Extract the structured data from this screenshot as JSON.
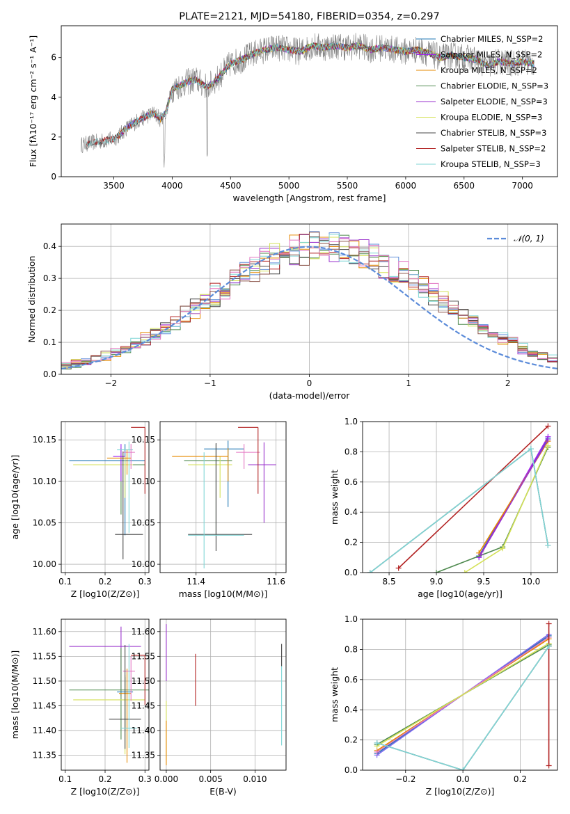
{
  "chart_data": [
    {
      "id": "spectrum",
      "type": "line",
      "title": "PLATE=2121, MJD=54180, FIBERID=0354, z=0.297",
      "xlabel": "wavelength [Angstrom, rest frame]",
      "ylabel": "Flux [fλ10⁻¹⁷ erg cm⁻² s⁻¹ A⁻¹]",
      "xlim": [
        3050,
        7300
      ],
      "ylim": [
        0,
        7.6
      ],
      "xticks": [
        3500,
        4000,
        4500,
        5000,
        5500,
        6000,
        6500,
        7000
      ],
      "yticks": [
        0,
        2,
        4,
        6
      ],
      "legend_position": "top-right",
      "data_color": "#808080",
      "continuum": {
        "x": [
          3220,
          3300,
          3400,
          3500,
          3550,
          3600,
          3700,
          3800,
          3850,
          3900,
          3950,
          4000,
          4100,
          4200,
          4300,
          4400,
          4500,
          4600,
          4700,
          4800,
          4900,
          5000,
          5100,
          5200,
          5300,
          5400,
          5500,
          5600,
          5700,
          5800,
          5900,
          6000,
          6100,
          6200,
          6300,
          6400,
          6500,
          6600,
          6700,
          6800,
          6900,
          7000,
          7100
        ],
        "y": [
          1.6,
          1.7,
          1.8,
          1.9,
          2.1,
          2.4,
          2.8,
          3.1,
          3.2,
          2.9,
          3.3,
          4.4,
          4.7,
          4.9,
          4.5,
          5.0,
          5.7,
          5.9,
          6.2,
          6.4,
          6.5,
          6.4,
          6.3,
          6.6,
          6.5,
          6.6,
          6.5,
          6.6,
          6.4,
          6.5,
          6.4,
          6.3,
          6.4,
          6.2,
          6.0,
          6.1,
          6.0,
          5.9,
          5.6,
          5.8,
          5.7,
          5.8,
          5.7
        ]
      },
      "series": [
        {
          "name": "Chabrier MILES, N_SSP=2",
          "color": "#1f77b4"
        },
        {
          "name": "Salpeter MILES, N_SSP=2",
          "color": "#a020f0"
        },
        {
          "name": "Kroupa MILES, N_SSP=2",
          "color": "#e68a00"
        },
        {
          "name": "Chabrier ELODIE, N_SSP=3",
          "color": "#4f8a4f"
        },
        {
          "name": "Salpeter ELODIE, N_SSP=3",
          "color": "#9932cc"
        },
        {
          "name": "Kroupa ELODIE, N_SSP=3",
          "color": "#d4e157"
        },
        {
          "name": "Chabrier STELIB, N_SSP=3",
          "color": "#444444"
        },
        {
          "name": "Salpeter STELIB, N_SSP=2",
          "color": "#b22222"
        },
        {
          "name": "Kroupa STELIB, N_SSP=3",
          "color": "#7fd6d6"
        }
      ]
    },
    {
      "id": "residuals",
      "type": "line",
      "title": "",
      "xlabel": "(data-model)/error",
      "ylabel": "Normed distribution",
      "xlim": [
        -2.5,
        2.5
      ],
      "ylim": [
        0,
        0.47
      ],
      "xticks": [
        -2,
        -1,
        0,
        1,
        2
      ],
      "yticks": [
        0.0,
        0.1,
        0.2,
        0.3,
        0.4
      ],
      "grid": true,
      "legend_position": "top-right",
      "reference_curve": {
        "name": "𝒩(0, 1)",
        "color": "#5b8bd9",
        "mean": 0,
        "sigma": 1
      },
      "histogram_bin_width": 0.1,
      "histogram_mean": 0.15,
      "histogram_sigma": 1.12,
      "series_colors": [
        "#5b8bd9",
        "#e68a00",
        "#4f8a4f",
        "#9932cc",
        "#d4e157",
        "#444444",
        "#b22222",
        "#7fd6d6",
        "#e377c2",
        "#8c564b"
      ]
    },
    {
      "id": "age-vs-Z",
      "type": "scatter",
      "xlabel": "Z [log10(Z/Z⊙)]",
      "ylabel": "age  [log10(age/yr)]",
      "xlim": [
        0.09,
        0.31
      ],
      "ylim": [
        9.99,
        10.172
      ],
      "xticks": [
        0.1,
        0.2,
        0.3
      ],
      "yticks": [
        10.0,
        10.05,
        10.1,
        10.15
      ],
      "grid": true,
      "points": [
        {
          "x": 0.24,
          "y": 10.12,
          "xerr": [
            0.1,
            0.06
          ],
          "yerr": [
            0.06,
            0.02
          ],
          "color": "#4f8a4f"
        },
        {
          "x": 0.25,
          "y": 10.125,
          "xerr": [
            0.14,
            0.05
          ],
          "yerr": [
            0.09,
            0.02
          ],
          "color": "#1f77b4"
        },
        {
          "x": 0.25,
          "y": 10.12,
          "xerr": [
            0.13,
            0.02
          ],
          "yerr": [
            0.04,
            0.01
          ],
          "color": "#d4e157"
        },
        {
          "x": 0.24,
          "y": 10.13,
          "xerr": [
            0.02,
            0.01
          ],
          "yerr": [
            0.03,
            0.015
          ],
          "color": "#a020f0"
        },
        {
          "x": 0.26,
          "y": 10.138,
          "xerr": [
            0.03,
            0.01
          ],
          "yerr": [
            0.1,
            0.01
          ],
          "color": "#7fd6d6"
        },
        {
          "x": 0.265,
          "y": 10.135,
          "xerr": [
            0.02,
            0.01
          ],
          "yerr": [
            0.02,
            0.01
          ],
          "color": "#e377c2"
        },
        {
          "x": 0.255,
          "y": 10.128,
          "xerr": [
            0.05,
            0.01
          ],
          "yerr": [
            0.02,
            0.01
          ],
          "color": "#e68a00"
        },
        {
          "x": 0.245,
          "y": 10.036,
          "xerr": [
            0.02,
            0.05
          ],
          "yerr": [
            0.03,
            0.1
          ],
          "color": "#444444"
        },
        {
          "x": 0.3,
          "y": 10.165,
          "xerr": [
            0.035,
            0.0
          ],
          "yerr": [
            0.08,
            0.0
          ],
          "color": "#b22222"
        }
      ]
    },
    {
      "id": "age-vs-mass",
      "type": "scatter",
      "xlabel": "mass [log10(M/M⊙)]",
      "ylabel": "",
      "xlim": [
        11.31,
        11.625
      ],
      "ylim": [
        9.99,
        10.172
      ],
      "xticks": [
        11.4,
        11.6
      ],
      "yticks": [
        10.0,
        10.05,
        10.1,
        10.15
      ],
      "grid": true,
      "points": [
        {
          "x": 11.45,
          "y": 10.125,
          "xerr": [
            0.08,
            0.04
          ],
          "yerr": [
            0.09,
            0.02
          ],
          "color": "#4f8a4f"
        },
        {
          "x": 11.48,
          "y": 10.139,
          "xerr": [
            0.06,
            0.04
          ],
          "yerr": [
            0.07,
            0.01
          ],
          "color": "#1f77b4"
        },
        {
          "x": 11.46,
          "y": 10.12,
          "xerr": [
            0.08,
            0.03
          ],
          "yerr": [
            0.04,
            0.01
          ],
          "color": "#d4e157"
        },
        {
          "x": 11.57,
          "y": 10.12,
          "xerr": [
            0.04,
            0.03
          ],
          "yerr": [
            0.07,
            0.027
          ],
          "color": "#9932cc"
        },
        {
          "x": 11.48,
          "y": 10.13,
          "xerr": [
            0.14,
            0.0
          ],
          "yerr": [
            0.03,
            0.01
          ],
          "color": "#e68a00"
        },
        {
          "x": 11.52,
          "y": 10.135,
          "xerr": [
            0.02,
            0.04
          ],
          "yerr": [
            0.02,
            0.01
          ],
          "color": "#e377c2"
        },
        {
          "x": 11.45,
          "y": 10.036,
          "xerr": [
            0.07,
            0.09
          ],
          "yerr": [
            0.02,
            0.11
          ],
          "color": "#444444"
        },
        {
          "x": 11.42,
          "y": 10.035,
          "xerr": [
            0.04,
            0.1
          ],
          "yerr": [
            0.04,
            0.1
          ],
          "color": "#7fd6d6"
        },
        {
          "x": 11.555,
          "y": 10.165,
          "xerr": [
            0.05,
            0.0
          ],
          "yerr": [
            0.08,
            0.0
          ],
          "color": "#b22222"
        }
      ]
    },
    {
      "id": "weight-vs-age",
      "type": "line",
      "xlabel": "age  [log10(age/yr)]",
      "ylabel": "mass weight",
      "xlim": [
        8.22,
        10.28
      ],
      "ylim": [
        0,
        1.0
      ],
      "xticks": [
        8.5,
        9.0,
        9.5,
        10.0
      ],
      "yticks": [
        0.0,
        0.2,
        0.4,
        0.6,
        0.8,
        1.0
      ],
      "grid": true,
      "series": [
        {
          "name": "Chabrier MILES, N_SSP=2",
          "color": "#1f77b4",
          "x": [
            9.45,
            10.18
          ],
          "y": [
            0.11,
            0.89
          ]
        },
        {
          "name": "Salpeter MILES, N_SSP=2",
          "color": "#a020f0",
          "x": [
            9.45,
            10.18
          ],
          "y": [
            0.1,
            0.9
          ]
        },
        {
          "name": "Kroupa MILES, N_SSP=2",
          "color": "#e68a00",
          "x": [
            9.45,
            10.18
          ],
          "y": [
            0.13,
            0.87
          ]
        },
        {
          "name": "Chabrier ELODIE, N_SSP=3",
          "color": "#4f8a4f",
          "x": [
            9.0,
            9.7,
            10.18
          ],
          "y": [
            0.0,
            0.17,
            0.83
          ]
        },
        {
          "name": "Salpeter ELODIE, N_SSP=3",
          "color": "#9932cc",
          "x": [
            9.47,
            10.18
          ],
          "y": [
            0.12,
            0.88
          ]
        },
        {
          "name": "Kroupa ELODIE, N_SSP=3",
          "color": "#d4e157",
          "x": [
            9.3,
            9.7,
            10.18
          ],
          "y": [
            0.0,
            0.16,
            0.84
          ]
        },
        {
          "name": "Chabrier STELIB, N_SSP=3",
          "color": "#444444",
          "x": [
            8.3,
            10.0,
            10.18
          ],
          "y": [
            0.0,
            0.82,
            0.18
          ]
        },
        {
          "name": "Salpeter STELIB, N_SSP=2",
          "color": "#b22222",
          "x": [
            8.6,
            10.18
          ],
          "y": [
            0.03,
            0.97
          ]
        },
        {
          "name": "Kroupa STELIB, N_SSP=3",
          "color": "#7fd6d6",
          "x": [
            8.3,
            10.0,
            10.18
          ],
          "y": [
            0.0,
            0.82,
            0.18
          ]
        }
      ]
    },
    {
      "id": "mass-vs-Z",
      "type": "scatter",
      "xlabel": "Z [log10(Z/Z⊙)]",
      "ylabel": "mass [log10(M/M⊙)]",
      "xlim": [
        0.09,
        0.31
      ],
      "ylim": [
        11.32,
        11.625
      ],
      "xticks": [
        0.1,
        0.2,
        0.3
      ],
      "yticks": [
        11.35,
        11.4,
        11.45,
        11.5,
        11.55,
        11.6
      ],
      "grid": true,
      "points": [
        {
          "x": 0.24,
          "y": 11.57,
          "xerr": [
            0.13,
            0.05
          ],
          "yerr": [
            0.1,
            0.04
          ],
          "color": "#9932cc"
        },
        {
          "x": 0.24,
          "y": 11.482,
          "xerr": [
            0.13,
            0.07
          ],
          "yerr": [
            0.1,
            0.085
          ],
          "color": "#4f8a4f"
        },
        {
          "x": 0.25,
          "y": 11.478,
          "xerr": [
            0.02,
            0.02
          ],
          "yerr": [
            0.08,
            0.03
          ],
          "color": "#1f77b4"
        },
        {
          "x": 0.25,
          "y": 11.462,
          "xerr": [
            0.13,
            0.05
          ],
          "yerr": [
            0.11,
            0.05
          ],
          "color": "#d4e157"
        },
        {
          "x": 0.255,
          "y": 11.475,
          "xerr": [
            0.02,
            0.01
          ],
          "yerr": [
            0.14,
            0.05
          ],
          "color": "#e68a00"
        },
        {
          "x": 0.265,
          "y": 11.52,
          "xerr": [
            0.02,
            0.01
          ],
          "yerr": [
            0.06,
            0.03
          ],
          "color": "#e377c2"
        },
        {
          "x": 0.25,
          "y": 11.423,
          "xerr": [
            0.04,
            0.04
          ],
          "yerr": [
            0.06,
            0.15
          ],
          "color": "#444444"
        },
        {
          "x": 0.26,
          "y": 11.405,
          "xerr": [
            0.02,
            0.02
          ],
          "yerr": [
            0.04,
            0.17
          ],
          "color": "#7fd6d6"
        },
        {
          "x": 0.3,
          "y": 11.552,
          "xerr": [
            0.035,
            0.0
          ],
          "yerr": [
            0.1,
            0.0
          ],
          "color": "#b22222"
        }
      ]
    },
    {
      "id": "mass-vs-ebv",
      "type": "scatter",
      "xlabel": "E(B-V)",
      "ylabel": "",
      "xlim": [
        -0.0007,
        0.0135
      ],
      "ylim": [
        11.32,
        11.625
      ],
      "xticks": [
        0.0,
        0.005,
        0.01
      ],
      "yticks": [
        11.35,
        11.4,
        11.45,
        11.5,
        11.55,
        11.6
      ],
      "grid": true,
      "points": [
        {
          "x": 0.0,
          "y": 11.56,
          "yerr": [
            0.06,
            0.055
          ],
          "color": "#9932cc"
        },
        {
          "x": 0.0,
          "y": 11.46,
          "yerr": [
            0.12,
            0.0
          ],
          "color": "#d4e157"
        },
        {
          "x": 0.0,
          "y": 11.36,
          "yerr": [
            0.03,
            0.06
          ],
          "color": "#e68a00"
        },
        {
          "x": 0.0033,
          "y": 11.5,
          "yerr": [
            0.05,
            0.055
          ],
          "color": "#b22222"
        },
        {
          "x": 0.013,
          "y": 11.53,
          "yerr": [
            0.0,
            0.045
          ],
          "color": "#444444"
        },
        {
          "x": 0.013,
          "y": 11.45,
          "yerr": [
            0.08,
            0.08
          ],
          "color": "#7fd6d6"
        }
      ]
    },
    {
      "id": "weight-vs-Z",
      "type": "line",
      "xlabel": "Z [log10(Z/Z⊙)]",
      "ylabel": "mass weight",
      "xlim": [
        -0.35,
        0.33
      ],
      "ylim": [
        0,
        1.0
      ],
      "xticks": [
        -0.2,
        0.0,
        0.2
      ],
      "yticks": [
        0.0,
        0.2,
        0.4,
        0.6,
        0.8,
        1.0
      ],
      "grid": true,
      "series": [
        {
          "name": "Chabrier MILES, N_SSP=2",
          "color": "#1f77b4",
          "x": [
            -0.3,
            0.3
          ],
          "y": [
            0.11,
            0.89
          ]
        },
        {
          "name": "Salpeter MILES, N_SSP=2",
          "color": "#7b68ee",
          "x": [
            -0.3,
            0.3
          ],
          "y": [
            0.1,
            0.9
          ]
        },
        {
          "name": "Kroupa MILES, N_SSP=2",
          "color": "#e68a00",
          "x": [
            -0.3,
            0.3
          ],
          "y": [
            0.13,
            0.87
          ]
        },
        {
          "name": "Chabrier ELODIE, N_SSP=3",
          "color": "#4f8a4f",
          "x": [
            -0.3,
            0.3
          ],
          "y": [
            0.17,
            0.83
          ]
        },
        {
          "name": "Salpeter ELODIE, N_SSP=3",
          "color": "#e377c2",
          "x": [
            -0.3,
            0.3
          ],
          "y": [
            0.12,
            0.88
          ]
        },
        {
          "name": "Kroupa ELODIE, N_SSP=3",
          "color": "#d4e157",
          "x": [
            -0.3,
            0.3
          ],
          "y": [
            0.16,
            0.84
          ]
        },
        {
          "name": "Chabrier STELIB, N_SSP=3",
          "color": "#444444",
          "x": [
            -0.3,
            0.0,
            0.3
          ],
          "y": [
            0.18,
            0.0,
            0.82
          ]
        },
        {
          "name": "Salpeter STELIB, N_SSP=2",
          "color": "#b22222",
          "x": [
            0.3,
            0.3
          ],
          "y": [
            0.03,
            0.97
          ]
        },
        {
          "name": "Kroupa STELIB, N_SSP=3",
          "color": "#7fd6d6",
          "x": [
            -0.3,
            0.0,
            0.3
          ],
          "y": [
            0.18,
            0.0,
            0.82
          ]
        }
      ]
    }
  ]
}
